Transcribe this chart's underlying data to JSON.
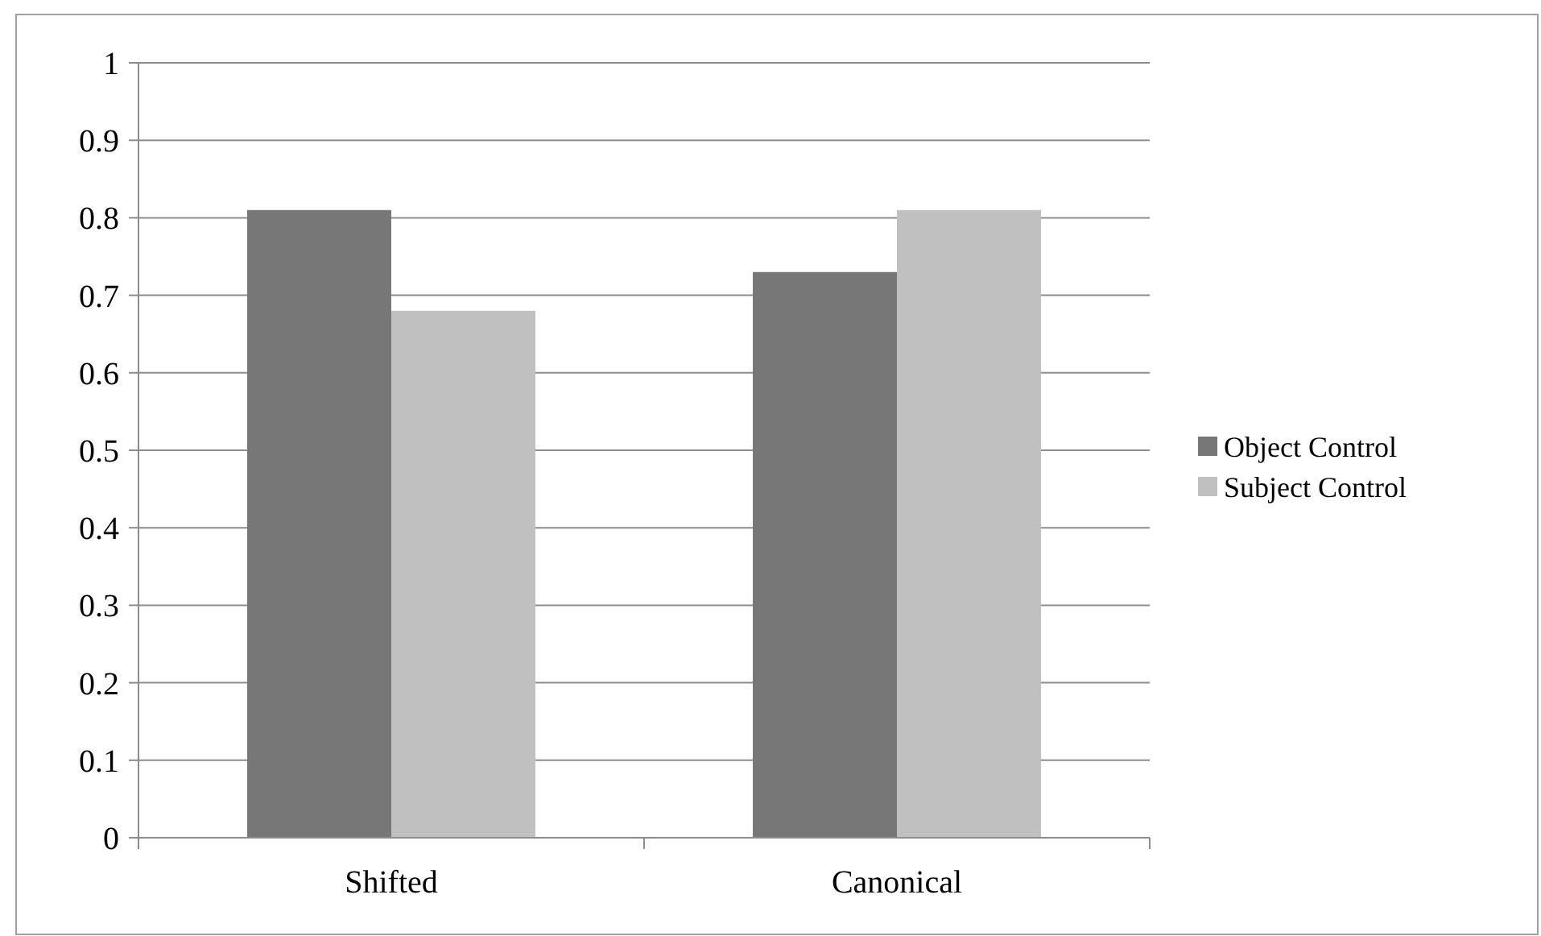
{
  "chart_data": {
    "type": "bar",
    "categories": [
      "Shifted",
      "Canonical"
    ],
    "series": [
      {
        "name": "Object Control",
        "color": "#777777",
        "values": [
          0.81,
          0.73
        ]
      },
      {
        "name": "Subject Control",
        "color": "#c0c0c0",
        "values": [
          0.68,
          0.81
        ]
      }
    ],
    "ylim": [
      0,
      1
    ],
    "yticks": [
      0,
      0.1,
      0.2,
      0.3,
      0.4,
      0.5,
      0.6,
      0.7,
      0.8,
      0.9,
      1
    ],
    "grid": "y",
    "legend": "right"
  }
}
